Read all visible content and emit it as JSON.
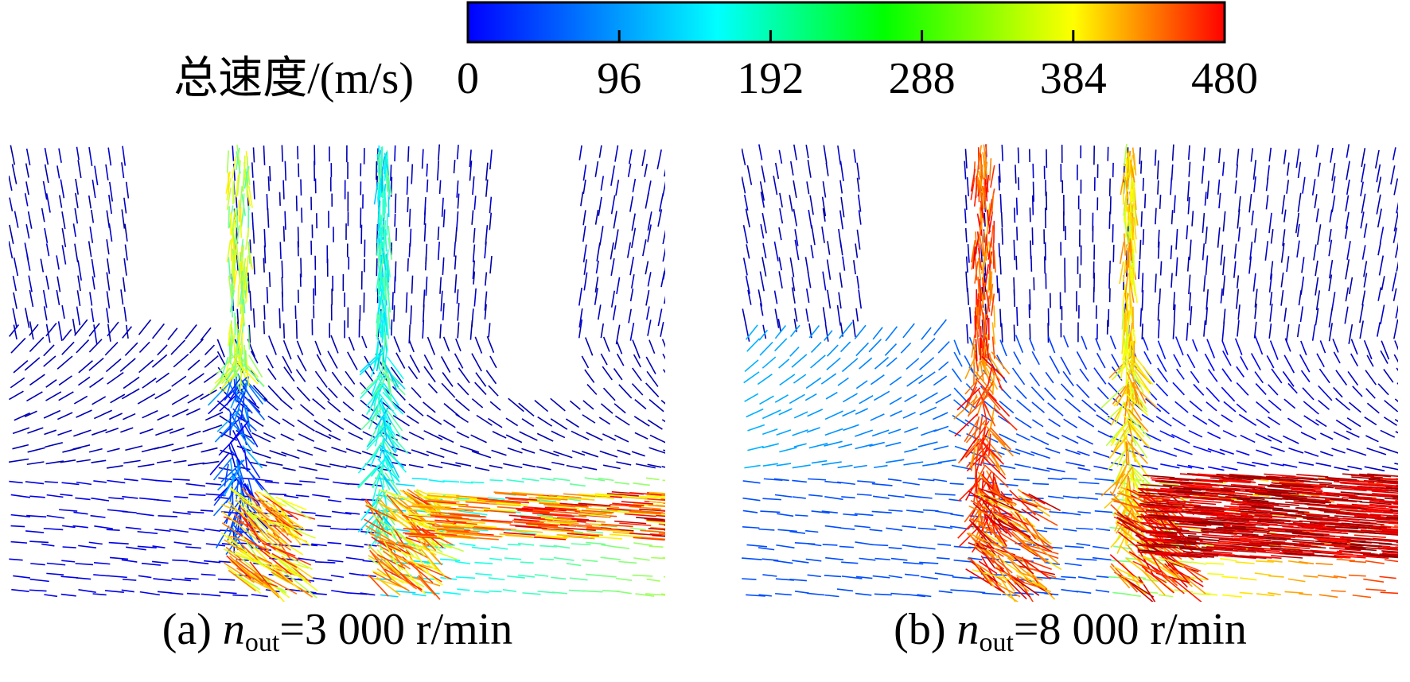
{
  "colorbar": {
    "label": "总速度/(m/s)",
    "range": [
      0,
      480
    ],
    "ticks": [
      0,
      96,
      192,
      288,
      384,
      480
    ]
  },
  "panels": [
    {
      "prefix": "(a)",
      "var": "n",
      "sub": "out",
      "rest": "=3 000 r/min"
    },
    {
      "prefix": "(b)",
      "var": "n",
      "sub": "out",
      "rest": "=8 000 r/min"
    }
  ]
}
